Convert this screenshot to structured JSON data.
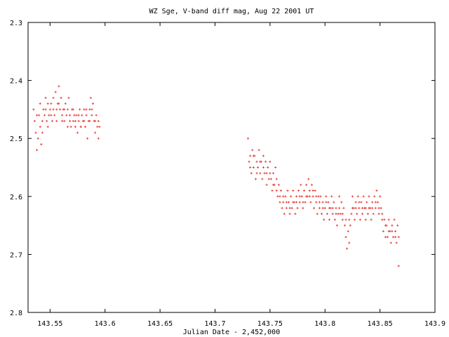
{
  "chart_data": {
    "type": "scatter",
    "title": "WZ Sge, V-band diff mag, Aug 22 2001 UT",
    "xlabel": "Julian Date - 2,452,000",
    "ylabel": "",
    "xlim": [
      143.53,
      143.9
    ],
    "ylim": [
      2.3,
      2.8
    ],
    "y_inverted": true,
    "grid": false,
    "marker": "plus",
    "colors": {
      "points": "#e8433f",
      "axes": "#000000"
    },
    "x_ticks": [
      "143.55",
      "143.6",
      "143.65",
      "143.7",
      "143.75",
      "143.8",
      "143.85",
      "143.9"
    ],
    "y_ticks": [
      "2.3",
      "2.4",
      "2.5",
      "2.6",
      "2.7",
      "2.8"
    ],
    "series": [
      {
        "points": [
          [
            143.535,
            2.45
          ],
          [
            143.536,
            2.47
          ],
          [
            143.537,
            2.49
          ],
          [
            143.538,
            2.52
          ],
          [
            143.539,
            2.5
          ],
          [
            143.54,
            2.46
          ],
          [
            143.541,
            2.48
          ],
          [
            143.542,
            2.51
          ],
          [
            143.543,
            2.47
          ],
          [
            143.544,
            2.45
          ],
          [
            143.545,
            2.46
          ],
          [
            143.546,
            2.43
          ],
          [
            143.547,
            2.47
          ],
          [
            143.548,
            2.44
          ],
          [
            143.549,
            2.46
          ],
          [
            143.55,
            2.45
          ],
          [
            143.551,
            2.44
          ],
          [
            143.552,
            2.47
          ],
          [
            143.553,
            2.43
          ],
          [
            143.554,
            2.46
          ],
          [
            143.555,
            2.42
          ],
          [
            143.556,
            2.45
          ],
          [
            143.557,
            2.44
          ],
          [
            143.558,
            2.41
          ],
          [
            143.559,
            2.45
          ],
          [
            143.56,
            2.43
          ],
          [
            143.561,
            2.46
          ],
          [
            143.562,
            2.45
          ],
          [
            143.563,
            2.47
          ],
          [
            143.564,
            2.44
          ],
          [
            143.565,
            2.46
          ],
          [
            143.566,
            2.45
          ],
          [
            143.567,
            2.43
          ],
          [
            143.568,
            2.46
          ],
          [
            143.569,
            2.48
          ],
          [
            143.57,
            2.45
          ],
          [
            143.571,
            2.47
          ],
          [
            143.572,
            2.46
          ],
          [
            143.573,
            2.48
          ],
          [
            143.574,
            2.46
          ],
          [
            143.575,
            2.49
          ],
          [
            143.576,
            2.47
          ],
          [
            143.577,
            2.45
          ],
          [
            143.578,
            2.48
          ],
          [
            143.579,
            2.46
          ],
          [
            143.58,
            2.47
          ],
          [
            143.581,
            2.45
          ],
          [
            143.582,
            2.48
          ],
          [
            143.583,
            2.46
          ],
          [
            143.584,
            2.5
          ],
          [
            143.585,
            2.47
          ],
          [
            143.586,
            2.45
          ],
          [
            143.587,
            2.43
          ],
          [
            143.588,
            2.46
          ],
          [
            143.589,
            2.44
          ],
          [
            143.59,
            2.47
          ],
          [
            143.591,
            2.49
          ],
          [
            143.592,
            2.46
          ],
          [
            143.593,
            2.48
          ],
          [
            143.594,
            2.5
          ],
          [
            143.595,
            2.48
          ],
          [
            143.73,
            2.5
          ],
          [
            143.731,
            2.54
          ],
          [
            143.732,
            2.53
          ],
          [
            143.733,
            2.56
          ],
          [
            143.734,
            2.52
          ],
          [
            143.735,
            2.55
          ],
          [
            143.736,
            2.53
          ],
          [
            143.737,
            2.57
          ],
          [
            143.738,
            2.54
          ],
          [
            143.739,
            2.55
          ],
          [
            143.74,
            2.52
          ],
          [
            143.741,
            2.56
          ],
          [
            143.742,
            2.54
          ],
          [
            143.743,
            2.57
          ],
          [
            143.744,
            2.53
          ],
          [
            143.745,
            2.56
          ],
          [
            143.746,
            2.54
          ],
          [
            143.747,
            2.58
          ],
          [
            143.748,
            2.55
          ],
          [
            143.749,
            2.57
          ],
          [
            143.75,
            2.54
          ],
          [
            143.751,
            2.57
          ],
          [
            143.752,
            2.59
          ],
          [
            143.753,
            2.56
          ],
          [
            143.754,
            2.58
          ],
          [
            143.755,
            2.55
          ],
          [
            143.756,
            2.57
          ],
          [
            143.757,
            2.6
          ],
          [
            143.758,
            2.58
          ],
          [
            143.759,
            2.61
          ],
          [
            143.76,
            2.59
          ],
          [
            143.761,
            2.62
          ],
          [
            143.762,
            2.6
          ],
          [
            143.763,
            2.63
          ],
          [
            143.764,
            2.6
          ],
          [
            143.765,
            2.62
          ],
          [
            143.766,
            2.59
          ],
          [
            143.767,
            2.61
          ],
          [
            143.768,
            2.63
          ],
          [
            143.769,
            2.6
          ],
          [
            143.77,
            2.62
          ],
          [
            143.771,
            2.59
          ],
          [
            143.772,
            2.61
          ],
          [
            143.773,
            2.63
          ],
          [
            143.774,
            2.6
          ],
          [
            143.775,
            2.62
          ],
          [
            143.776,
            2.59
          ],
          [
            143.777,
            2.61
          ],
          [
            143.778,
            2.58
          ],
          [
            143.779,
            2.6
          ],
          [
            143.78,
            2.62
          ],
          [
            143.781,
            2.59
          ],
          [
            143.782,
            2.61
          ],
          [
            143.783,
            2.58
          ],
          [
            143.784,
            2.6
          ],
          [
            143.785,
            2.57
          ],
          [
            143.786,
            2.59
          ],
          [
            143.787,
            2.61
          ],
          [
            143.788,
            2.58
          ],
          [
            143.789,
            2.6
          ],
          [
            143.79,
            2.62
          ],
          [
            143.791,
            2.59
          ],
          [
            143.792,
            2.61
          ],
          [
            143.793,
            2.63
          ],
          [
            143.794,
            2.6
          ],
          [
            143.795,
            2.62
          ],
          [
            143.796,
            2.6
          ],
          [
            143.797,
            2.63
          ],
          [
            143.798,
            2.61
          ],
          [
            143.799,
            2.64
          ],
          [
            143.8,
            2.62
          ],
          [
            143.801,
            2.6
          ],
          [
            143.802,
            2.63
          ],
          [
            143.803,
            2.61
          ],
          [
            143.804,
            2.64
          ],
          [
            143.805,
            2.62
          ],
          [
            143.806,
            2.6
          ],
          [
            143.807,
            2.63
          ],
          [
            143.808,
            2.61
          ],
          [
            143.809,
            2.64
          ],
          [
            143.81,
            2.62
          ],
          [
            143.811,
            2.65
          ],
          [
            143.812,
            2.63
          ],
          [
            143.813,
            2.6
          ],
          [
            143.814,
            2.63
          ],
          [
            143.815,
            2.61
          ],
          [
            143.816,
            2.64
          ],
          [
            143.817,
            2.62
          ],
          [
            143.818,
            2.65
          ],
          [
            143.819,
            2.67
          ],
          [
            143.82,
            2.69
          ],
          [
            143.821,
            2.66
          ],
          [
            143.822,
            2.68
          ],
          [
            143.823,
            2.65
          ],
          [
            143.824,
            2.63
          ],
          [
            143.825,
            2.6
          ],
          [
            143.826,
            2.62
          ],
          [
            143.827,
            2.64
          ],
          [
            143.828,
            2.61
          ],
          [
            143.829,
            2.63
          ],
          [
            143.83,
            2.6
          ],
          [
            143.831,
            2.62
          ],
          [
            143.832,
            2.64
          ],
          [
            143.833,
            2.61
          ],
          [
            143.834,
            2.63
          ],
          [
            143.835,
            2.6
          ],
          [
            143.836,
            2.62
          ],
          [
            143.837,
            2.64
          ],
          [
            143.838,
            2.61
          ],
          [
            143.839,
            2.63
          ],
          [
            143.84,
            2.6
          ],
          [
            143.841,
            2.62
          ],
          [
            143.842,
            2.64
          ],
          [
            143.843,
            2.61
          ],
          [
            143.844,
            2.63
          ],
          [
            143.845,
            2.6
          ],
          [
            143.846,
            2.62
          ],
          [
            143.847,
            2.59
          ],
          [
            143.848,
            2.61
          ],
          [
            143.849,
            2.63
          ],
          [
            143.85,
            2.6
          ],
          [
            143.851,
            2.62
          ],
          [
            143.852,
            2.64
          ],
          [
            143.853,
            2.66
          ],
          [
            143.854,
            2.64
          ],
          [
            143.855,
            2.67
          ],
          [
            143.856,
            2.65
          ],
          [
            143.857,
            2.67
          ],
          [
            143.858,
            2.64
          ],
          [
            143.859,
            2.66
          ],
          [
            143.86,
            2.68
          ],
          [
            143.861,
            2.65
          ],
          [
            143.862,
            2.67
          ],
          [
            143.863,
            2.64
          ],
          [
            143.864,
            2.66
          ],
          [
            143.865,
            2.68
          ],
          [
            143.866,
            2.65
          ],
          [
            143.867,
            2.67
          ],
          [
            143.538,
            2.46
          ],
          [
            143.541,
            2.44
          ],
          [
            143.543,
            2.49
          ],
          [
            143.546,
            2.45
          ],
          [
            143.548,
            2.48
          ],
          [
            143.551,
            2.46
          ],
          [
            143.553,
            2.45
          ],
          [
            143.556,
            2.47
          ],
          [
            143.558,
            2.44
          ],
          [
            143.561,
            2.47
          ],
          [
            143.563,
            2.45
          ],
          [
            143.566,
            2.48
          ],
          [
            143.568,
            2.47
          ],
          [
            143.571,
            2.45
          ],
          [
            143.573,
            2.47
          ],
          [
            143.576,
            2.46
          ],
          [
            143.578,
            2.48
          ],
          [
            143.581,
            2.47
          ],
          [
            143.583,
            2.45
          ],
          [
            143.586,
            2.47
          ],
          [
            143.588,
            2.45
          ],
          [
            143.591,
            2.47
          ],
          [
            143.594,
            2.47
          ],
          [
            143.732,
            2.55
          ],
          [
            143.735,
            2.53
          ],
          [
            143.738,
            2.56
          ],
          [
            143.741,
            2.54
          ],
          [
            143.744,
            2.55
          ],
          [
            143.747,
            2.56
          ],
          [
            143.75,
            2.56
          ],
          [
            143.753,
            2.58
          ],
          [
            143.756,
            2.59
          ],
          [
            143.759,
            2.6
          ],
          [
            143.762,
            2.61
          ],
          [
            143.765,
            2.61
          ],
          [
            143.768,
            2.62
          ],
          [
            143.771,
            2.61
          ],
          [
            143.774,
            2.61
          ],
          [
            143.777,
            2.6
          ],
          [
            143.78,
            2.61
          ],
          [
            143.783,
            2.6
          ],
          [
            143.786,
            2.6
          ],
          [
            143.789,
            2.59
          ],
          [
            143.792,
            2.6
          ],
          [
            143.795,
            2.61
          ],
          [
            143.798,
            2.62
          ],
          [
            143.801,
            2.61
          ],
          [
            143.804,
            2.62
          ],
          [
            143.807,
            2.62
          ],
          [
            143.81,
            2.63
          ],
          [
            143.813,
            2.62
          ],
          [
            143.816,
            2.63
          ],
          [
            143.819,
            2.64
          ],
          [
            143.822,
            2.64
          ],
          [
            143.825,
            2.62
          ],
          [
            143.828,
            2.62
          ],
          [
            143.831,
            2.61
          ],
          [
            143.834,
            2.62
          ],
          [
            143.837,
            2.62
          ],
          [
            143.84,
            2.62
          ],
          [
            143.843,
            2.62
          ],
          [
            143.846,
            2.61
          ],
          [
            143.849,
            2.62
          ],
          [
            143.852,
            2.63
          ],
          [
            143.855,
            2.65
          ],
          [
            143.858,
            2.66
          ],
          [
            143.861,
            2.66
          ],
          [
            143.864,
            2.67
          ],
          [
            143.867,
            2.72
          ]
        ]
      }
    ]
  }
}
